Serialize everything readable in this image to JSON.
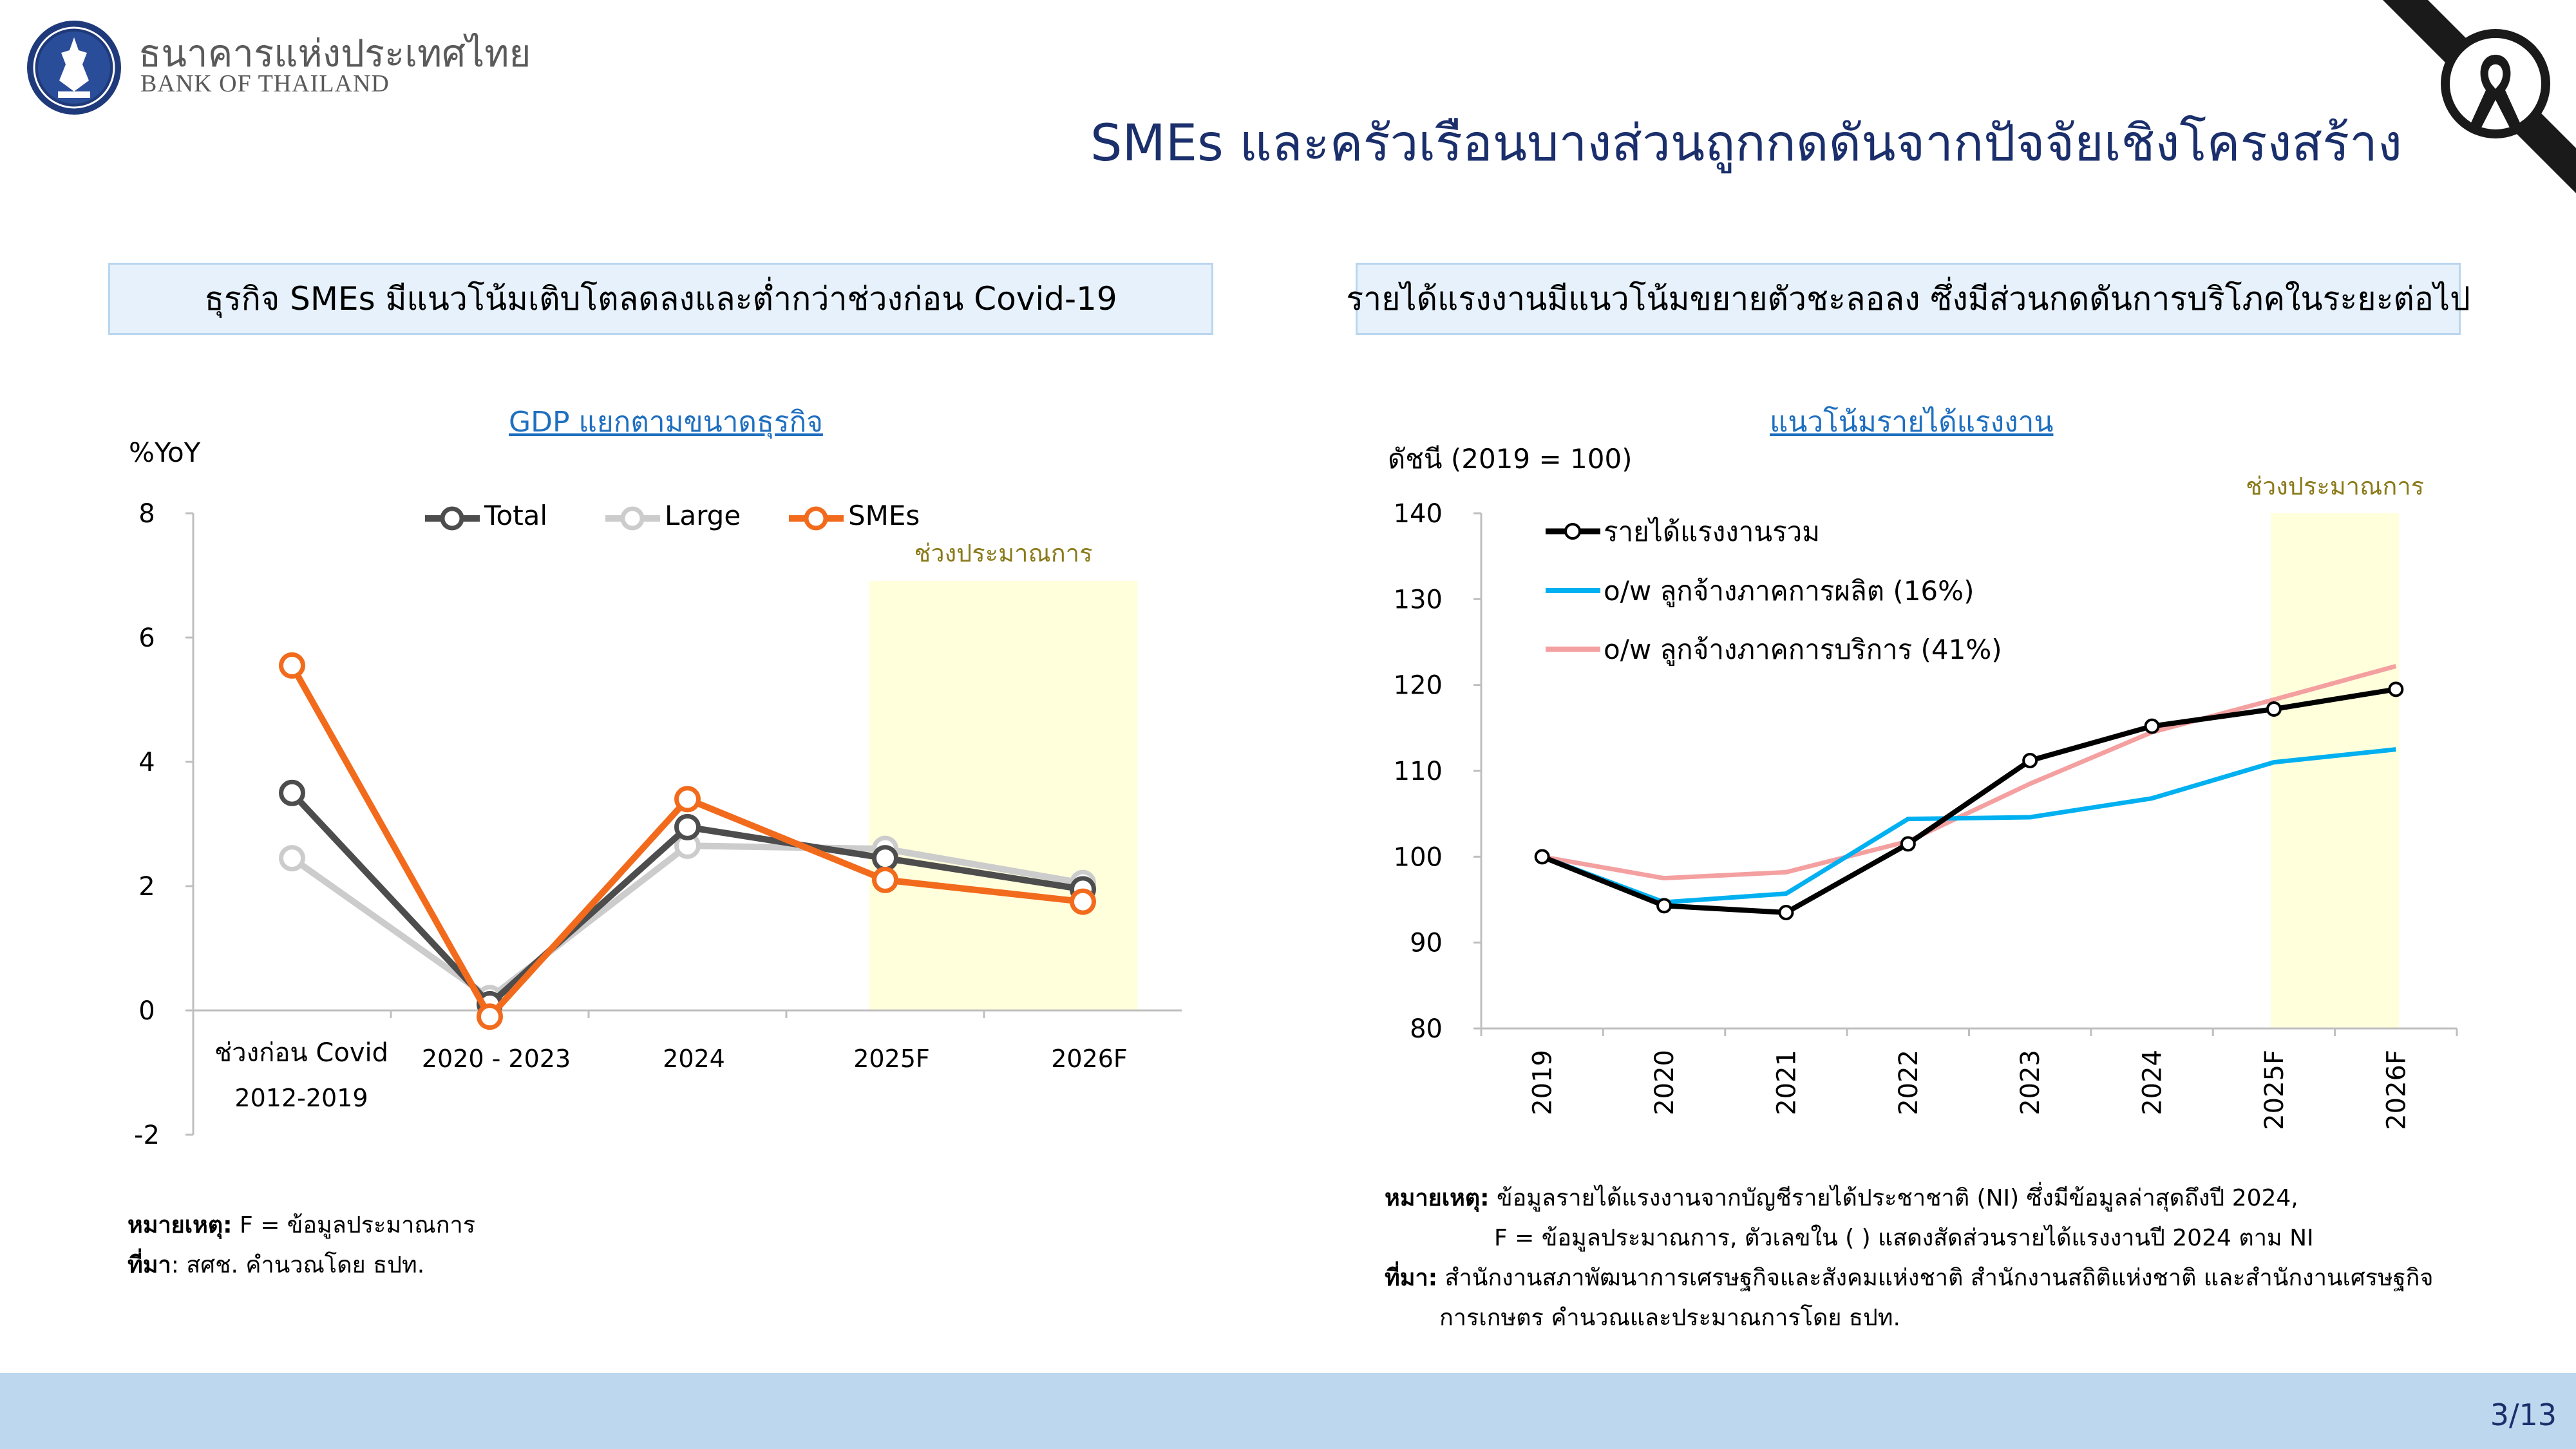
{
  "header": {
    "org_name_th": "ธนาคารแห่งประเทศไทย",
    "org_name_en": "BANK OF THAILAND",
    "title": "SMEs และครัวเรือนบางส่วนถูกกดดันจากปัจจัยเชิงโครงสร้าง"
  },
  "left_panel": {
    "heading": "ธุรกิจ SMEs มีแนวโน้มเติบโตลดลงและต่ำกว่าช่วงก่อน Covid-19",
    "note_label": "หมายเหตุ:",
    "note_text": "F = ข้อมูลประมาณการ",
    "source_label": "ที่มา",
    "source_text": ": สศช. คำนวณโดย ธปท."
  },
  "right_panel": {
    "heading": "รายได้แรงงานมีแนวโน้มขยายตัวชะลอลง ซึ่งมีส่วนกดดันการบริโภคในระยะต่อไป",
    "note_label": "หมายเหตุ:",
    "note_line1": "ข้อมูลรายได้แรงงานจากบัญชีรายได้ประชาชาติ (NI) ซึ่งมีข้อมูลล่าสุดถึงปี 2024,",
    "note_line2": "F = ข้อมูลประมาณการ, ตัวเลขใน ( ) แสดงสัดส่วนรายได้แรงงานปี 2024 ตาม NI",
    "source_label": "ที่มา:",
    "source_line1": "สำนักงานสภาพัฒนาการเศรษฐกิจและสังคมแห่งชาติ สำนักงานสถิติแห่งชาติ และสำนักงานเศรษฐกิจ",
    "source_line2": "การเกษตร คำนวณและประมาณการโดย ธปท."
  },
  "footer": {
    "page": "3/13"
  },
  "colors": {
    "title_blue": "#1a2f6b",
    "link_blue": "#1f6fbf",
    "forecast_bg": "#ffffdc",
    "forecast_text": "#8a7a1a",
    "footer_bar": "#bdd7ee"
  },
  "icons": [
    "bot-seal-logo-icon",
    "black-ribbon-icon"
  ],
  "chart_data": [
    {
      "type": "line",
      "title": "GDP แยกตามขนาดธุรกิจ",
      "ylabel": "%YoY",
      "categories": [
        [
          "ช่วงก่อน Covid",
          "2012-2019"
        ],
        [
          "2020 - 2023"
        ],
        [
          "2024"
        ],
        [
          "2025F"
        ],
        [
          "2026F"
        ]
      ],
      "ylim": [
        -2,
        8
      ],
      "yticks": [
        8,
        6,
        4,
        2,
        0,
        -2
      ],
      "forecast_label": "ช่วงประมาณการ",
      "forecast_categories": [
        "2025F",
        "2026F"
      ],
      "legend_position": "top",
      "grid": false,
      "series": [
        {
          "name": "Total",
          "color": "#4d4d4d",
          "values": [
            3.5,
            0.1,
            2.95,
            2.45,
            1.95
          ]
        },
        {
          "name": "Large",
          "color": "#cccccc",
          "values": [
            2.45,
            0.2,
            2.65,
            2.6,
            2.05
          ]
        },
        {
          "name": "SMEs",
          "color": "#f26b1d",
          "values": [
            5.55,
            -0.1,
            3.4,
            2.1,
            1.75
          ]
        }
      ]
    },
    {
      "type": "line",
      "title": "แนวโน้มรายได้แรงงาน",
      "ylabel": "ดัชนี (2019 = 100)",
      "categories": [
        "2019",
        "2020",
        "2021",
        "2022",
        "2023",
        "2024",
        "2025F",
        "2026F"
      ],
      "ylim": [
        80,
        140
      ],
      "yticks": [
        140,
        130,
        120,
        110,
        100,
        90,
        80
      ],
      "forecast_label": "ช่วงประมาณการ",
      "forecast_categories": [
        "2025F",
        "2026F"
      ],
      "legend_position": "top-left",
      "grid": false,
      "series": [
        {
          "name": "รายได้แรงงานรวม",
          "color": "#000000",
          "markers": true,
          "values": [
            100,
            94.3,
            93.5,
            101.5,
            111.2,
            115.2,
            117.2,
            119.5
          ]
        },
        {
          "name": "o/w ลูกจ้างภาคการผลิต (16%)",
          "color": "#00b0f0",
          "markers": false,
          "values": [
            100,
            94.7,
            95.7,
            104.4,
            104.6,
            106.8,
            111.0,
            112.5
          ]
        },
        {
          "name": "o/w ลูกจ้างภาคการบริการ (41%)",
          "color": "#f4a0a0",
          "markers": false,
          "values": [
            100,
            97.5,
            98.2,
            101.8,
            108.5,
            114.5,
            118.3,
            122.2
          ]
        }
      ]
    }
  ]
}
